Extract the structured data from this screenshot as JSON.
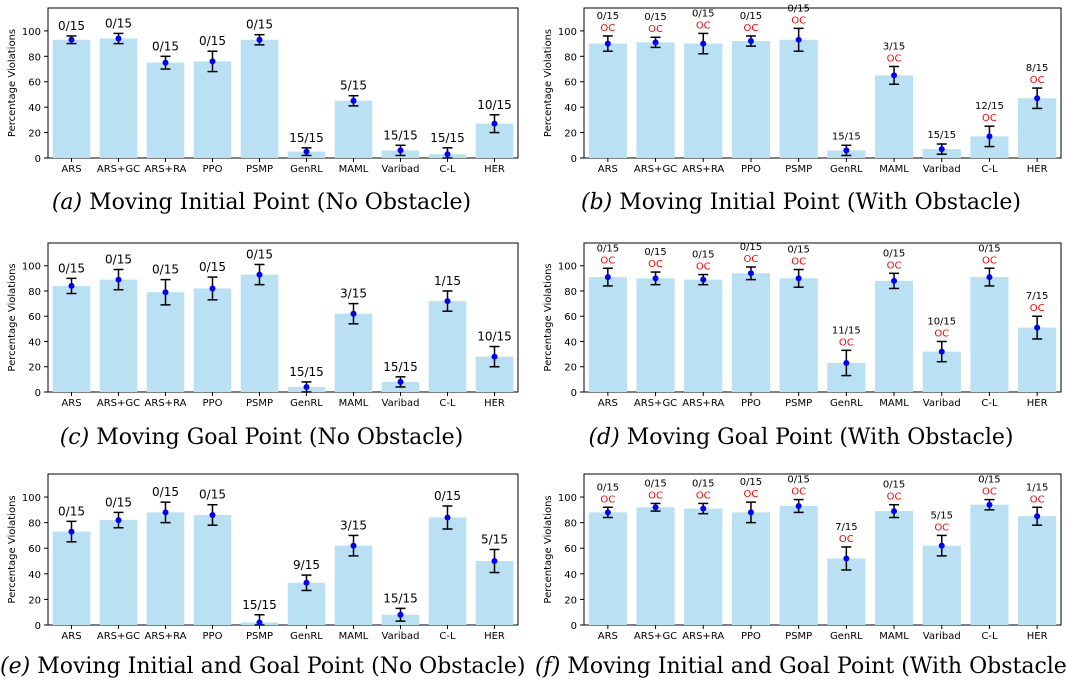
{
  "chart_data": [
    {
      "type": "bar",
      "id": "a",
      "caption_tag": "(a)",
      "caption_text": "Moving Initial Point (No Obstacle)",
      "categories": [
        "ARS",
        "ARS+GC",
        "ARS+RA",
        "PPO",
        "PSMP",
        "GenRL",
        "MAML",
        "Varibad",
        "C-L",
        "HER"
      ],
      "values": [
        93,
        94,
        75,
        76,
        93,
        5,
        45,
        6,
        3,
        27
      ],
      "errors": [
        3,
        4,
        5,
        8,
        4,
        3,
        4,
        4,
        5,
        7
      ],
      "annotations": [
        "0/15",
        "0/15",
        "0/15",
        "0/15",
        "0/15",
        "15/15",
        "5/15",
        "15/15",
        "15/15",
        "10/15"
      ],
      "oc": [],
      "ylabel": "Percentage Violations",
      "ylim": [
        0,
        100
      ],
      "yticks": [
        0,
        20,
        40,
        60,
        80,
        100
      ]
    },
    {
      "type": "bar",
      "id": "b",
      "caption_tag": "(b)",
      "caption_text": "Moving Initial Point (With Obstacle)",
      "categories": [
        "ARS",
        "ARS+GC",
        "ARS+RA",
        "PPO",
        "PSMP",
        "GenRL",
        "MAML",
        "Varibad",
        "C-L",
        "HER"
      ],
      "values": [
        90,
        91,
        90,
        92,
        93,
        6,
        65,
        7,
        17,
        47
      ],
      "errors": [
        6,
        4,
        8,
        4,
        9,
        4,
        7,
        4,
        8,
        8
      ],
      "annotations": [
        "0/15",
        "0/15",
        "0/15",
        "0/15",
        "0/15",
        "15/15",
        "3/15",
        "15/15",
        "12/15",
        "8/15"
      ],
      "oc": [
        "OC",
        "OC",
        "OC",
        "OC",
        "OC",
        "",
        "OC",
        "",
        "OC",
        "OC"
      ],
      "ylabel": "Percentage Violations",
      "ylim": [
        0,
        100
      ],
      "yticks": [
        0,
        20,
        40,
        60,
        80,
        100
      ]
    },
    {
      "type": "bar",
      "id": "c",
      "caption_tag": "(c)",
      "caption_text": "Moving Goal Point (No Obstacle)",
      "categories": [
        "ARS",
        "ARS+GC",
        "ARS+RA",
        "PPO",
        "PSMP",
        "GenRL",
        "MAML",
        "Varibad",
        "C-L",
        "HER"
      ],
      "values": [
        84,
        89,
        79,
        82,
        93,
        4,
        62,
        8,
        72,
        28
      ],
      "errors": [
        6,
        8,
        10,
        9,
        8,
        4,
        8,
        4,
        8,
        8
      ],
      "annotations": [
        "0/15",
        "0/15",
        "0/15",
        "0/15",
        "0/15",
        "15/15",
        "3/15",
        "15/15",
        "1/15",
        "10/15"
      ],
      "oc": [],
      "ylabel": "Percentage Violations",
      "ylim": [
        0,
        100
      ],
      "yticks": [
        0,
        20,
        40,
        60,
        80,
        100
      ]
    },
    {
      "type": "bar",
      "id": "d",
      "caption_tag": "(d)",
      "caption_text": "Moving Goal Point (With Obstacle)",
      "categories": [
        "ARS",
        "ARS+GC",
        "ARS+RA",
        "PPO",
        "PSMP",
        "GenRL",
        "MAML",
        "Varibad",
        "C-L",
        "HER"
      ],
      "values": [
        91,
        90,
        89,
        94,
        90,
        23,
        88,
        32,
        91,
        51
      ],
      "errors": [
        7,
        5,
        4,
        5,
        7,
        10,
        6,
        8,
        7,
        9
      ],
      "annotations": [
        "0/15",
        "0/15",
        "0/15",
        "0/15",
        "0/15",
        "11/15",
        "0/15",
        "10/15",
        "0/15",
        "7/15"
      ],
      "oc": [
        "OC",
        "OC",
        "OC",
        "OC",
        "OC",
        "OC",
        "OC",
        "OC",
        "OC",
        "OC"
      ],
      "ylabel": "Percentage Violations",
      "ylim": [
        0,
        100
      ],
      "yticks": [
        0,
        20,
        40,
        60,
        80,
        100
      ]
    },
    {
      "type": "bar",
      "id": "e",
      "caption_tag": "(e)",
      "caption_text": "Moving Initial and Goal Point (No Obstacle)",
      "categories": [
        "ARS",
        "ARS+GC",
        "ARS+RA",
        "PPO",
        "PSMP",
        "GenRL",
        "MAML",
        "Varibad",
        "C-L",
        "HER"
      ],
      "values": [
        73,
        82,
        88,
        86,
        2,
        33,
        62,
        8,
        84,
        50
      ],
      "errors": [
        8,
        6,
        8,
        8,
        6,
        6,
        8,
        5,
        9,
        9
      ],
      "annotations": [
        "0/15",
        "0/15",
        "0/15",
        "0/15",
        "15/15",
        "9/15",
        "3/15",
        "15/15",
        "0/15",
        "5/15"
      ],
      "oc": [],
      "ylabel": "Percentage Violations",
      "ylim": [
        0,
        100
      ],
      "yticks": [
        0,
        20,
        40,
        60,
        80,
        100
      ]
    },
    {
      "type": "bar",
      "id": "f",
      "caption_tag": "(f)",
      "caption_text": "Moving Initial and Goal Point (With Obstacle)",
      "categories": [
        "ARS",
        "ARS+GC",
        "ARS+RA",
        "PPO",
        "PSMP",
        "GenRL",
        "MAML",
        "Varibad",
        "C-L",
        "HER"
      ],
      "values": [
        88,
        92,
        91,
        88,
        93,
        52,
        89,
        62,
        94,
        85
      ],
      "errors": [
        4,
        3,
        4,
        8,
        5,
        9,
        5,
        8,
        4,
        7
      ],
      "annotations": [
        "0/15",
        "0/15",
        "0/15",
        "0/15",
        "0/15",
        "7/15",
        "0/15",
        "5/15",
        "0/15",
        "1/15"
      ],
      "oc": [
        "OC",
        "OC",
        "OC",
        "OC",
        "OC",
        "OC",
        "OC",
        "OC",
        "OC",
        "OC"
      ],
      "ylabel": "Percentage Violations",
      "ylim": [
        0,
        100
      ],
      "yticks": [
        0,
        20,
        40,
        60,
        80,
        100
      ]
    }
  ],
  "colors": {
    "bar": "#b9e0f3",
    "point": "#0000ff",
    "errorbar": "#000000",
    "oc_text": "#ff0000",
    "axis": "#000000"
  }
}
